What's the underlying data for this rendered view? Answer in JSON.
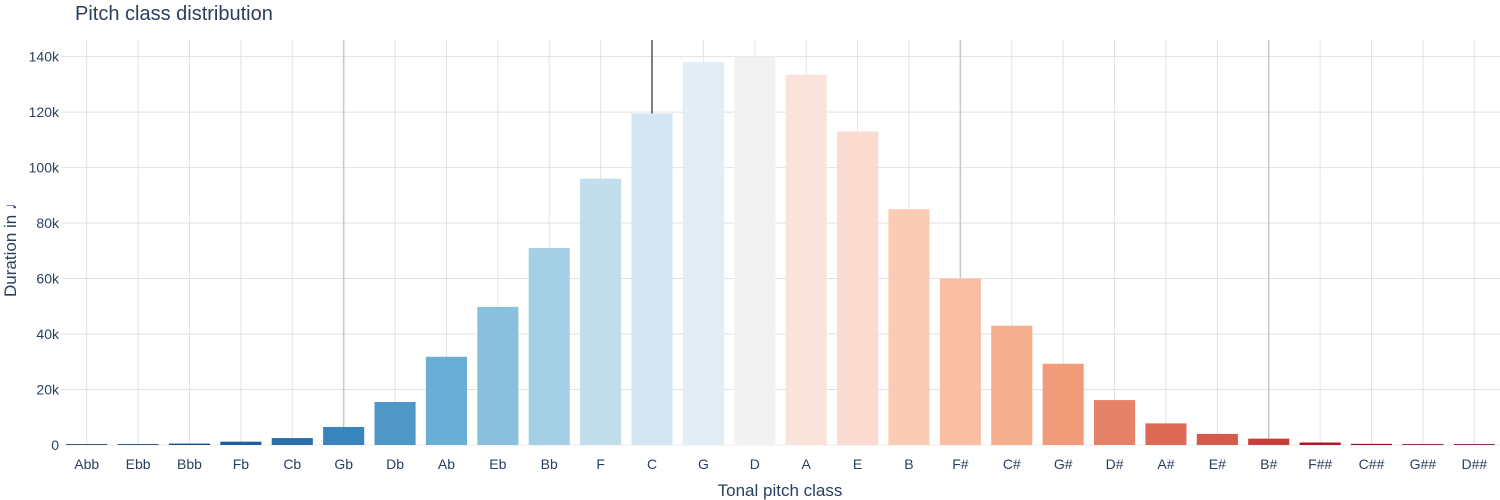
{
  "chart_data": {
    "type": "bar",
    "title": "Pitch class distribution",
    "xlabel": "Tonal pitch class",
    "ylabel": "Duration in ♩",
    "ylim": [
      0,
      146000
    ],
    "grid": true,
    "legend": "none",
    "yticks": [
      {
        "value": 0,
        "label": "0"
      },
      {
        "value": 20000,
        "label": "20k"
      },
      {
        "value": 40000,
        "label": "40k"
      },
      {
        "value": 60000,
        "label": "60k"
      },
      {
        "value": 80000,
        "label": "80k"
      },
      {
        "value": 100000,
        "label": "100k"
      },
      {
        "value": 120000,
        "label": "120k"
      },
      {
        "value": 140000,
        "label": "140k"
      }
    ],
    "categories": [
      "Abb",
      "Ebb",
      "Bbb",
      "Fb",
      "Cb",
      "Gb",
      "Db",
      "Ab",
      "Eb",
      "Bb",
      "F",
      "C",
      "G",
      "D",
      "A",
      "E",
      "B",
      "F#",
      "C#",
      "G#",
      "D#",
      "A#",
      "E#",
      "B#",
      "F##",
      "C##",
      "G##",
      "D##"
    ],
    "values": [
      100,
      300,
      500,
      1200,
      2500,
      6500,
      15500,
      31800,
      49800,
      71000,
      96000,
      119500,
      138000,
      140000,
      133500,
      113000,
      85000,
      60000,
      43000,
      29300,
      16200,
      7800,
      4000,
      2300,
      900,
      400,
      250,
      100
    ],
    "colors": [
      "#053061",
      "#0a3b70",
      "#134c88",
      "#1f5fa0",
      "#2b6ead",
      "#3884bc",
      "#4e97c7",
      "#6aaed5",
      "#88c0de",
      "#a4cfe4",
      "#c2ddec",
      "#d3e6f1",
      "#e2edf4",
      "#f2f2f2",
      "#f9e3db",
      "#fbdbcf",
      "#fbccb4",
      "#f8bfa4",
      "#f6af8e",
      "#f09c7b",
      "#e58267",
      "#de6a56",
      "#d45a4a",
      "#c53f3d",
      "#b2182b",
      "#900c21",
      "#6f0217",
      "#67001f"
    ],
    "highlight_lines": [
      "Gb",
      "C",
      "F#",
      "B#"
    ]
  }
}
